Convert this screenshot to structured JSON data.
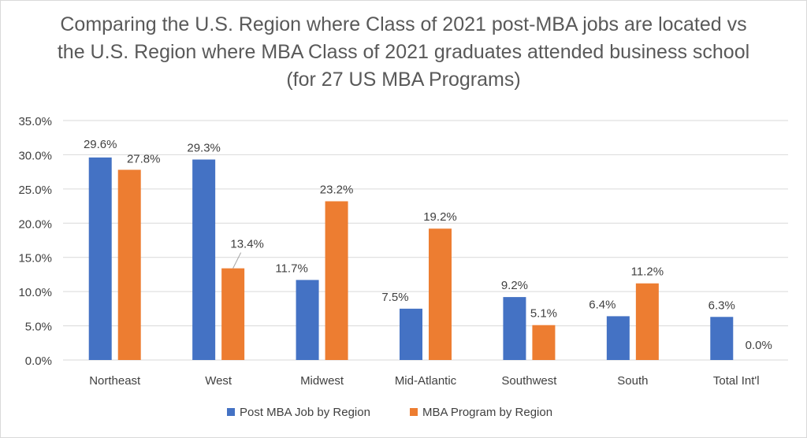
{
  "chart_data": {
    "type": "bar",
    "title": "Comparing the U.S. Region where Class of 2021 post-MBA jobs are located vs the U.S. Region where MBA Class of 2021 graduates attended business school (for 27 US MBA Programs)",
    "categories": [
      "Northeast",
      "West",
      "Midwest",
      "Mid-Atlantic",
      "Southwest",
      "South",
      "Total Int'l"
    ],
    "series": [
      {
        "name": "Post MBA Job by Region",
        "color": "#4472C4",
        "values": [
          29.6,
          29.3,
          11.7,
          7.5,
          9.2,
          6.4,
          6.3
        ],
        "labels": [
          "29.6%",
          "29.3%",
          "11.7%",
          "7.5%",
          "9.2%",
          "6.4%",
          "6.3%"
        ]
      },
      {
        "name": "MBA Program by Region",
        "color": "#ED7D31",
        "values": [
          27.8,
          13.4,
          23.2,
          19.2,
          5.1,
          11.2,
          0.0
        ],
        "labels": [
          "27.8%",
          "13.4%",
          "23.2%",
          "19.2%",
          "5.1%",
          "11.2%",
          "0.0%"
        ]
      }
    ],
    "ylim": [
      0,
      35
    ],
    "yticks": [
      "0.0%",
      "5.0%",
      "10.0%",
      "15.0%",
      "20.0%",
      "25.0%",
      "30.0%",
      "35.0%"
    ],
    "grid": true,
    "legend": "bottom",
    "xlabel": "",
    "ylabel": ""
  }
}
